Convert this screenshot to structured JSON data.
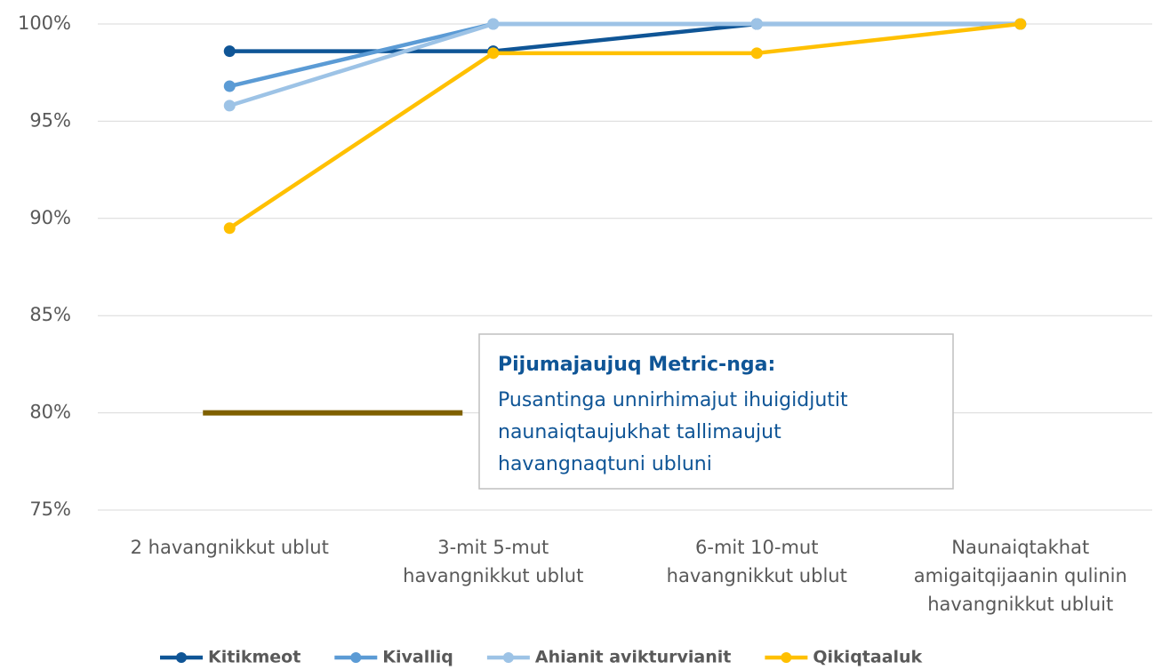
{
  "chart_data": {
    "type": "line",
    "categories": [
      [
        "2 havangnikkut ublut"
      ],
      [
        "3-mit 5-mut",
        "havangnikkut ublut"
      ],
      [
        "6-mit 10-mut",
        "havangnikkut ublut"
      ],
      [
        "Naunaiqtakhat",
        "amigaitqijaanin qulinin",
        "havangnikkut ubluit"
      ]
    ],
    "series": [
      {
        "name": "Kitikmeot",
        "color": "#0f5596",
        "values": [
          98.6,
          98.6,
          100,
          100
        ]
      },
      {
        "name": "Kivalliq",
        "color": "#5b9bd5",
        "values": [
          96.8,
          100,
          100,
          100
        ]
      },
      {
        "name": "Ahianit avikturvianit",
        "color": "#9dc3e6",
        "values": [
          95.8,
          100,
          100,
          100
        ]
      },
      {
        "name": "Qikiqtaaluk",
        "color": "#ffc000",
        "values": [
          89.5,
          98.5,
          98.5,
          100
        ]
      }
    ],
    "target_line": {
      "value": 80,
      "color": "#7f6000"
    },
    "ylim": [
      75,
      100
    ],
    "yticks": [
      {
        "value": 75,
        "label": "75%"
      },
      {
        "value": 80,
        "label": "80%"
      },
      {
        "value": 85,
        "label": "85%"
      },
      {
        "value": 90,
        "label": "90%"
      },
      {
        "value": 95,
        "label": "95%"
      },
      {
        "value": 100,
        "label": "100%"
      }
    ],
    "grid": true,
    "legend": "bottom",
    "annotation": {
      "title": "Pijumajaujuq Metric-nga:",
      "lines": [
        "Pusantinga unnirhimajut ihuigidjutit",
        "naunaiqtaujukhat tallimaujut",
        "havangnaqtuni ubluni"
      ]
    }
  }
}
